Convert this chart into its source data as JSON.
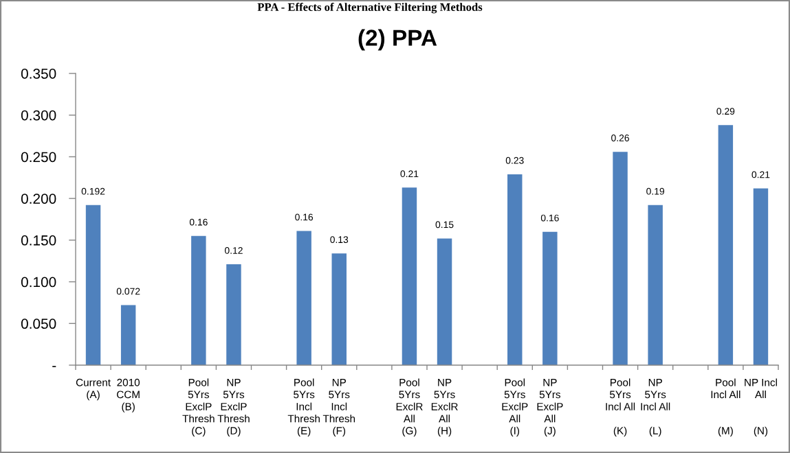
{
  "chart_data": {
    "type": "bar",
    "title": "(2) PPA",
    "annotations": [
      "PPA - Effects of Alternative Filtering Methods"
    ],
    "categories": [
      "Current\n(A)",
      "2010\nCCM\n(B)",
      null,
      "Pool\n5Yrs\nExclP\nThresh\n(C)",
      "NP\n5Yrs\nExclP\nThresh\n(D)",
      null,
      "Pool\n5Yrs\nIncl\nThresh\n(E)",
      "NP\n5Yrs\nIncl\nThresh\n(F)",
      null,
      "Pool\n5Yrs\nExclR\nAll\n(G)",
      "NP\n5Yrs\nExclR\nAll\n(H)",
      null,
      "Pool\n5Yrs\nExclP\nAll\n(I)",
      "NP\n5Yrs\nExclP\nAll\n(J)",
      null,
      "Pool\n5Yrs\nIncl All\n\n(K)",
      "NP\n5Yrs\nIncl All\n\n(L)",
      null,
      "Pool\nIncl All\n\n\n(M)",
      "NP Incl\nAll\n\n\n(N)"
    ],
    "values": [
      0.192,
      0.072,
      null,
      0.155,
      0.121,
      null,
      0.161,
      0.134,
      null,
      0.213,
      0.152,
      null,
      0.229,
      0.16,
      null,
      0.256,
      0.192,
      null,
      0.288,
      0.212
    ],
    "value_labels": [
      "0.192",
      "0.072",
      null,
      "0.16",
      "0.12",
      null,
      "0.16",
      "0.13",
      null,
      "0.21",
      "0.15",
      null,
      "0.23",
      "0.16",
      null,
      "0.26",
      "0.19",
      null,
      "0.29",
      "0.21"
    ],
    "color": "#4f81bd",
    "ylim": [
      0,
      0.35
    ],
    "yticks": [
      {
        "value": 0,
        "label": "-"
      },
      {
        "value": 0.05,
        "label": "0.050"
      },
      {
        "value": 0.1,
        "label": "0.100"
      },
      {
        "value": 0.15,
        "label": "0.150"
      },
      {
        "value": 0.2,
        "label": "0.200"
      },
      {
        "value": 0.25,
        "label": "0.250"
      },
      {
        "value": 0.3,
        "label": "0.300"
      },
      {
        "value": 0.35,
        "label": "0.350"
      }
    ],
    "grid": false,
    "legend": false
  }
}
